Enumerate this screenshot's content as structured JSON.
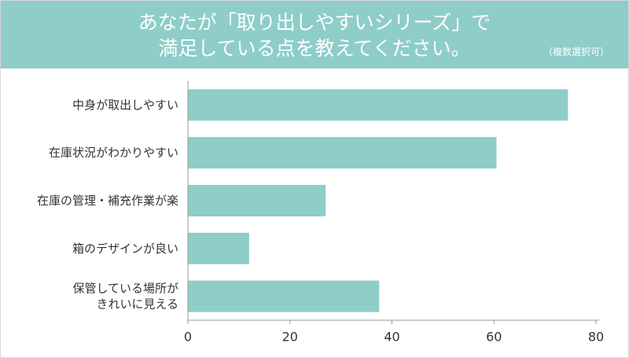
{
  "header": {
    "title_line1": "あなたが「取り出しやすいシリーズ」で",
    "title_line2": "満足している点を教えてください。",
    "note": "（複数選択可）"
  },
  "colors": {
    "header_bg": "#8ecdc8",
    "bar": "#8ecdc8",
    "axis": "#999999",
    "text": "#333333"
  },
  "chart_data": {
    "type": "bar",
    "orientation": "horizontal",
    "title": "あなたが「取り出しやすいシリーズ」で満足している点を教えてください。",
    "categories": [
      [
        "中身が取出しやすい"
      ],
      [
        "在庫状況がわかりやすい"
      ],
      [
        "在庫の管理・補充作業が楽"
      ],
      [
        "箱のデザインが良い"
      ],
      [
        "保管している場所が",
        "きれいに見える"
      ]
    ],
    "values": [
      74.5,
      60.5,
      27,
      12,
      37.5
    ],
    "xlim": [
      0,
      80
    ],
    "xticks": [
      0,
      20,
      40,
      60,
      80
    ],
    "grid": false,
    "legend": "none"
  }
}
